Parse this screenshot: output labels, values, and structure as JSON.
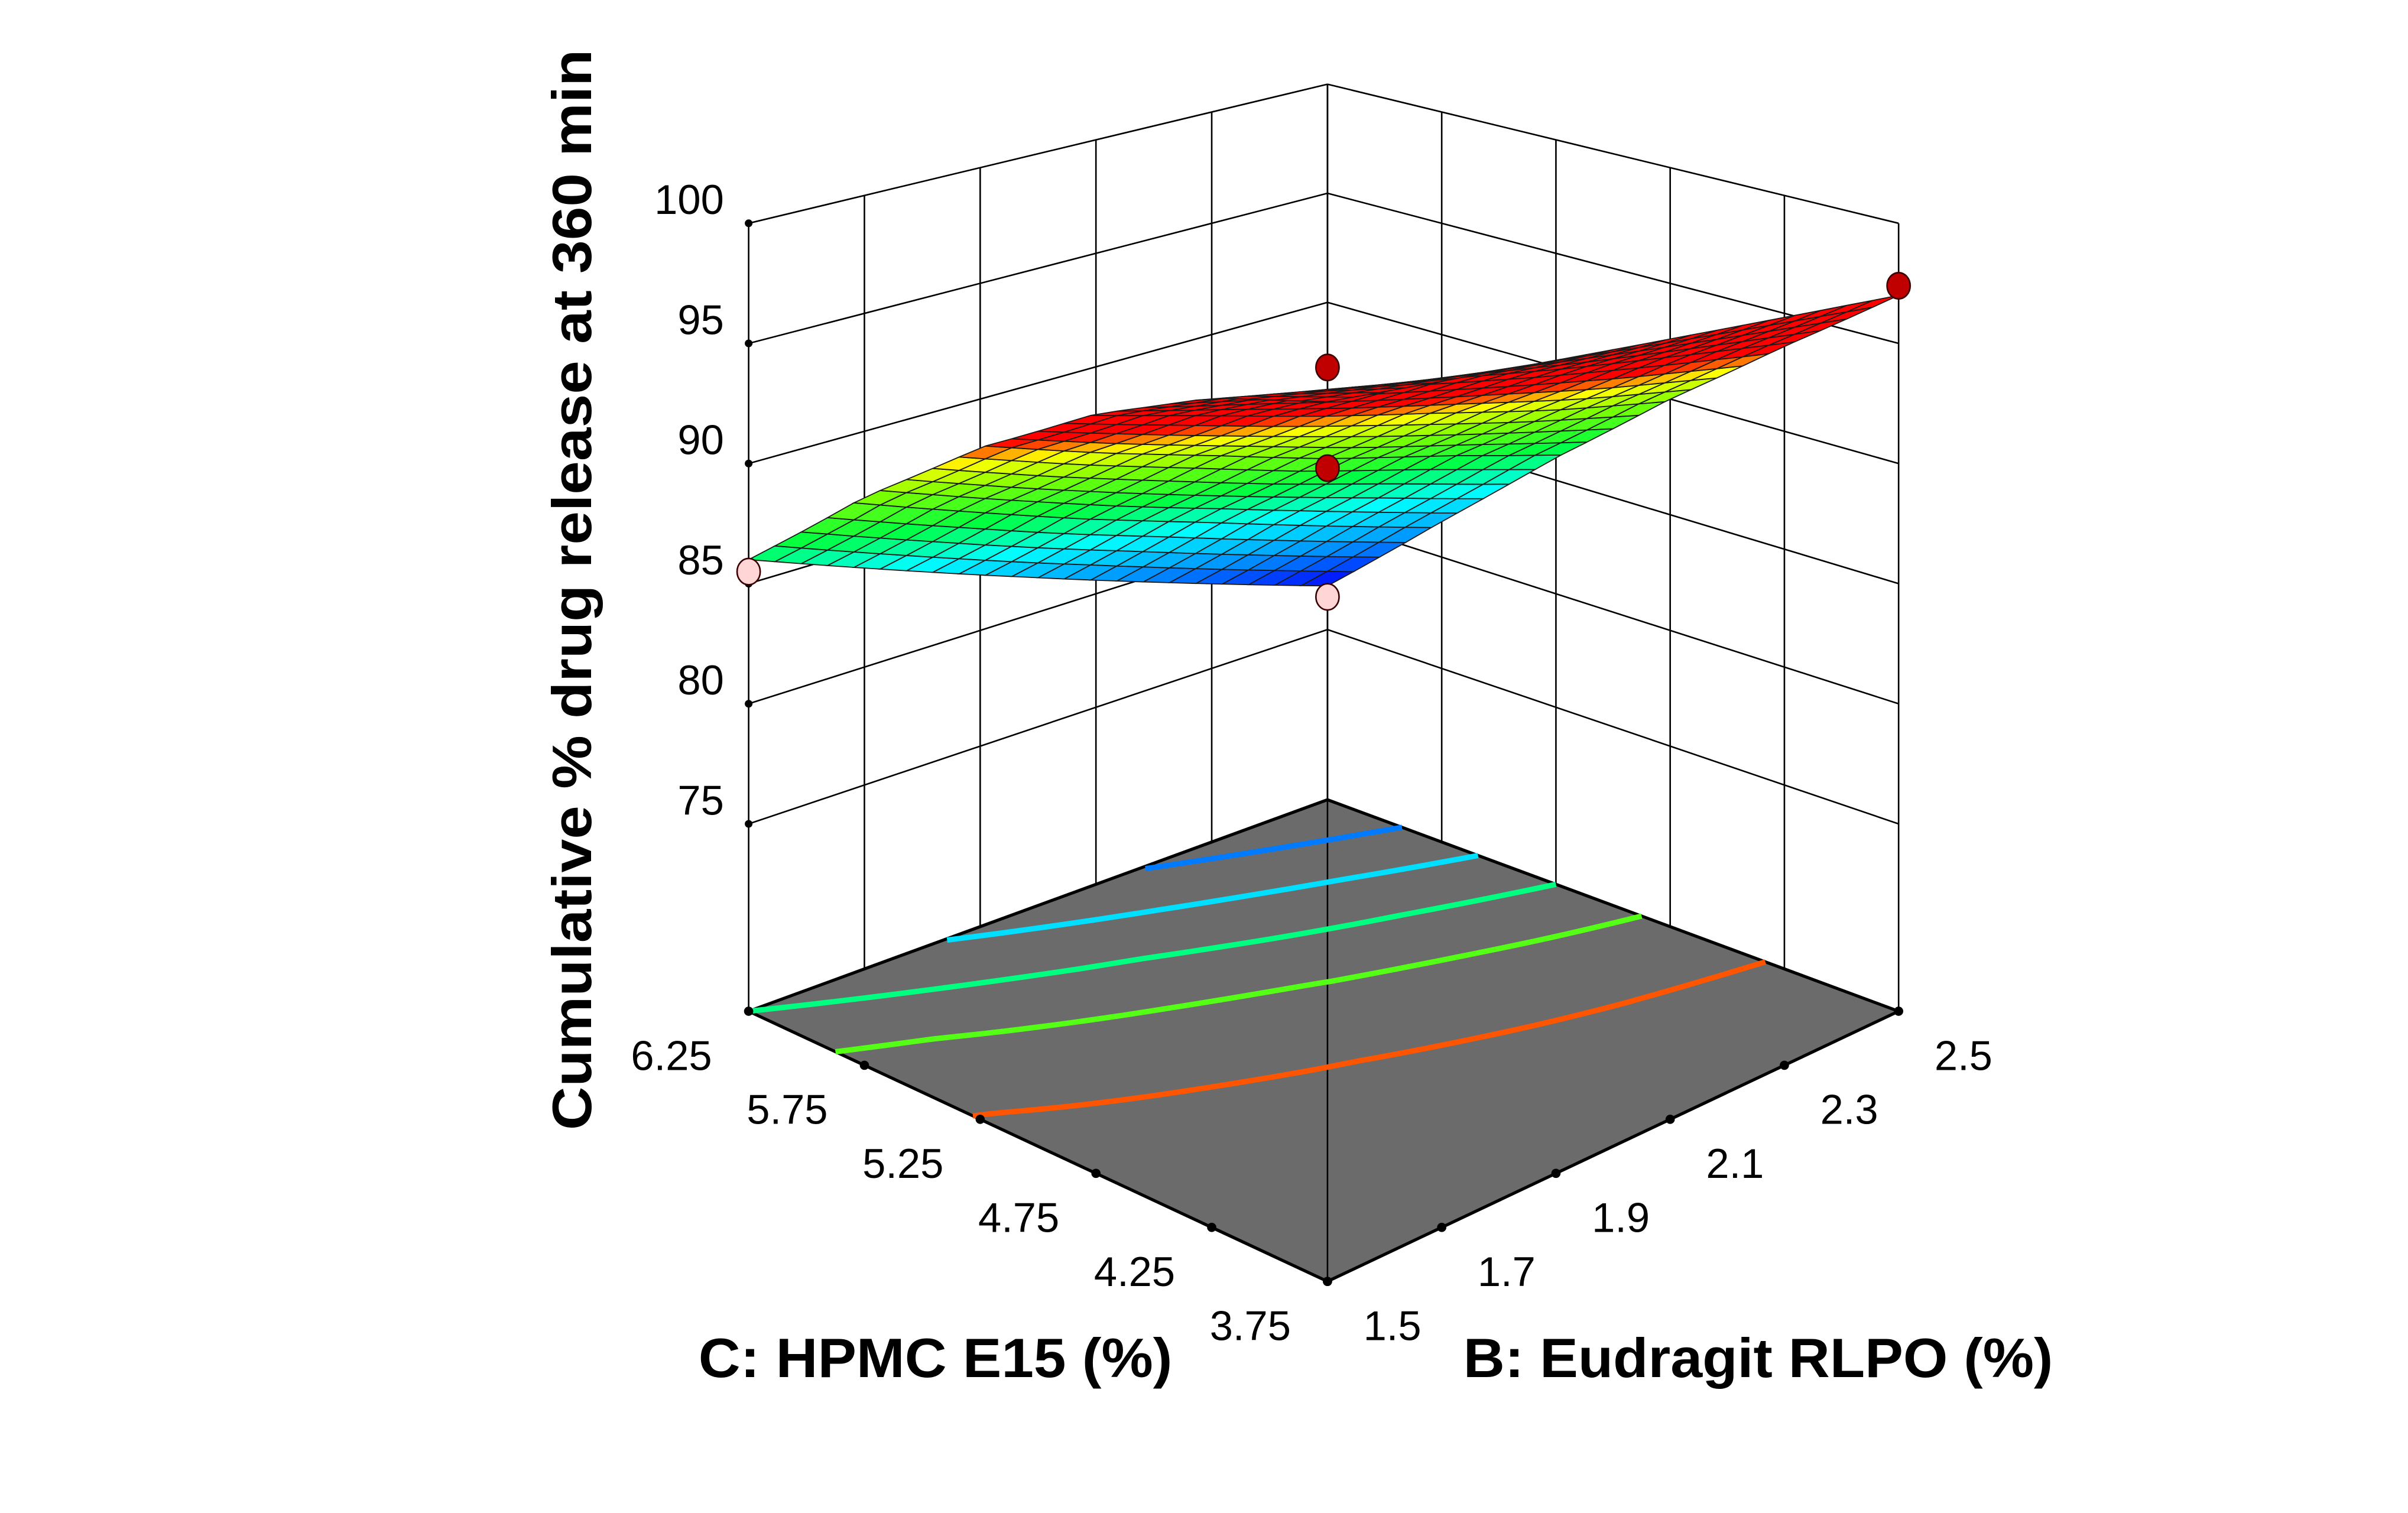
{
  "chart_data": {
    "type": "surface",
    "zlabel": "Cumulative % drug release at 360 min",
    "c_axis": {
      "label": "C: HPMC E15 (%)",
      "ticks": [
        "6.25",
        "5.75",
        "5.25",
        "4.75",
        "4.25",
        "3.75"
      ],
      "range": [
        3.75,
        6.25
      ]
    },
    "b_axis": {
      "label": "B: Eudragit RLPO (%)",
      "ticks": [
        "1.5",
        "1.7",
        "1.9",
        "2.1",
        "2.3",
        "2.5"
      ],
      "range": [
        1.5,
        2.5
      ]
    },
    "z_axis": {
      "ticks": [
        "100",
        "95",
        "90",
        "85",
        "80",
        "75"
      ],
      "range": [
        70,
        100
      ]
    },
    "surface": {
      "b_values": [
        1.5,
        1.7,
        1.9,
        2.1,
        2.3,
        2.5
      ],
      "c_values": [
        3.75,
        4.25,
        4.75,
        5.25,
        5.75,
        6.25
      ],
      "z": [
        [
          98.0,
          97.2,
          95.6,
          93.2,
          90.0,
          86.0
        ],
        [
          97.8,
          96.5,
          94.5,
          91.7,
          88.3,
          84.2
        ],
        [
          97.6,
          95.8,
          93.3,
          90.3,
          86.6,
          82.4
        ],
        [
          97.4,
          95.0,
          92.2,
          88.8,
          85.0,
          80.6
        ],
        [
          97.2,
          94.3,
          91.0,
          87.5,
          83.3,
          78.8
        ],
        [
          97.0,
          93.6,
          90.0,
          86.0,
          81.6,
          77.0
        ]
      ]
    },
    "colormap": [
      {
        "z": 77,
        "color": "#0000ff"
      },
      {
        "z": 80.5,
        "color": "#0090ff"
      },
      {
        "z": 84,
        "color": "#00ffff"
      },
      {
        "z": 87,
        "color": "#00ff40"
      },
      {
        "z": 90,
        "color": "#80ff00"
      },
      {
        "z": 92,
        "color": "#ffff00"
      },
      {
        "z": 93.5,
        "color": "#ff0000"
      },
      {
        "z": 100,
        "color": "#ff0000"
      }
    ],
    "floor_contours": [
      80,
      83,
      86,
      89,
      93
    ],
    "floor_color": "#6b6b6b",
    "design_points": [
      {
        "b": 1.5,
        "c": 3.75,
        "z": 99.2,
        "position": "above-surface",
        "color": "#c00000"
      },
      {
        "b": 2.5,
        "c": 3.75,
        "z": 97.4,
        "position": "above-surface",
        "color": "#c00000"
      },
      {
        "b": 2.5,
        "c": 6.25,
        "z": 82.4,
        "position": "above-surface",
        "color": "#c00000"
      },
      {
        "b": 2.5,
        "c": 6.25,
        "z": 76.5,
        "position": "below-surface",
        "color": "#ffd5d5"
      },
      {
        "b": 1.5,
        "c": 6.25,
        "z": 85.5,
        "position": "below-surface",
        "color": "#ffd5d5"
      }
    ],
    "grid": true
  }
}
